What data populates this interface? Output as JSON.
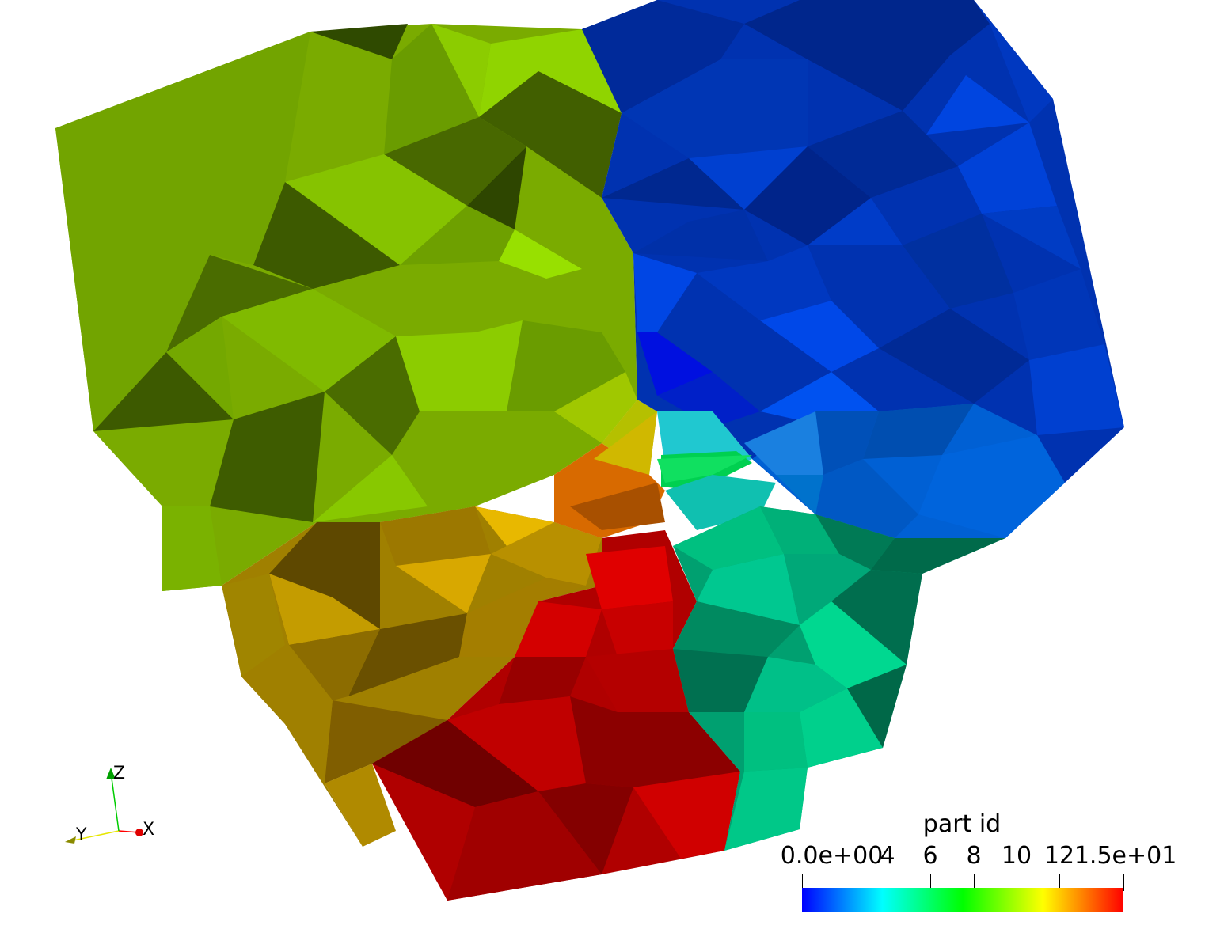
{
  "legend": {
    "title": "part id",
    "range": [
      0,
      15
    ],
    "ticks": [
      {
        "value": 0,
        "label": "0.0e+00"
      },
      {
        "value": 4,
        "label": "4"
      },
      {
        "value": 6,
        "label": "6"
      },
      {
        "value": 8,
        "label": "8"
      },
      {
        "value": 10,
        "label": "10"
      },
      {
        "value": 12,
        "label": "12"
      },
      {
        "value": 15,
        "label": "1.5e+01"
      }
    ],
    "colormap": [
      "#0000ff",
      "#00ffff",
      "#00ff00",
      "#ffff00",
      "#ff0000"
    ]
  },
  "axes": {
    "x_label": "X",
    "y_label": "Y",
    "z_label": "Z",
    "x_color": "#ff0000",
    "y_color": "#e6e600",
    "z_color": "#00cc00"
  },
  "mesh_parts": [
    {
      "name": "blue-region",
      "color": "#0028a8"
    },
    {
      "name": "lightblue-region",
      "color": "#005fd0"
    },
    {
      "name": "teal-region",
      "color": "#00b880"
    },
    {
      "name": "green-region",
      "color": "#00e040"
    },
    {
      "name": "lime-region",
      "color": "#7fb300"
    },
    {
      "name": "yellow-region",
      "color": "#c0a000"
    },
    {
      "name": "orange-region",
      "color": "#d06000"
    },
    {
      "name": "red-region",
      "color": "#c00000"
    }
  ]
}
